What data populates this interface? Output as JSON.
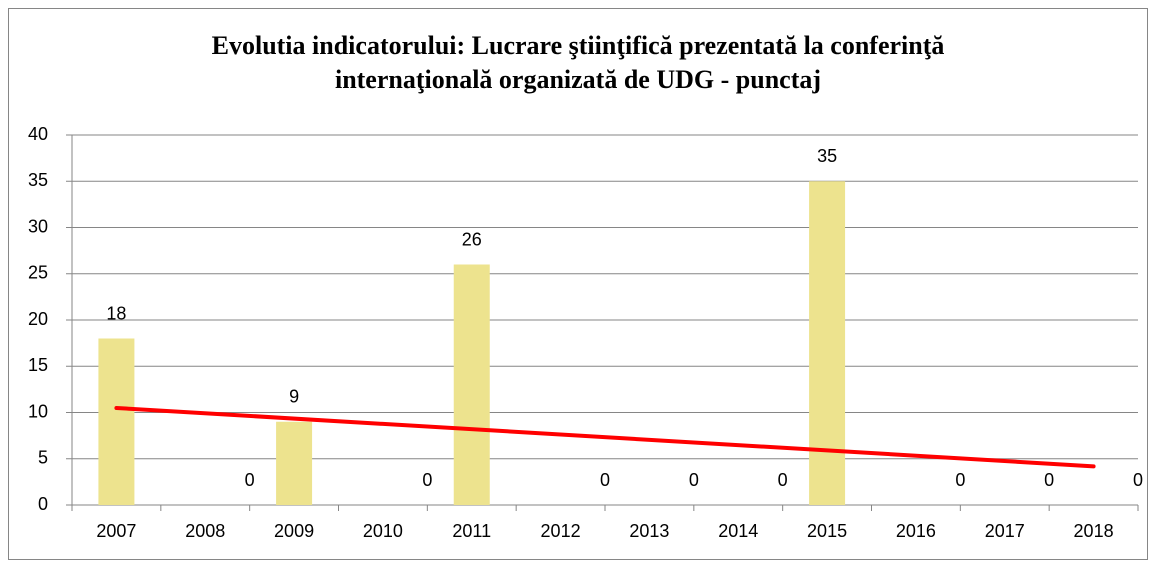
{
  "chart_data": {
    "type": "bar",
    "title": [
      "Evolutia indicatorului: Lucrare ştiinţifică prezentată la conferinţă",
      "internaţională organizată de UDG - punctaj"
    ],
    "categories": [
      "2007",
      "2008",
      "2009",
      "2010",
      "2011",
      "2012",
      "2013",
      "2014",
      "2015",
      "2016",
      "2017",
      "2018"
    ],
    "values": [
      18,
      0,
      9,
      0,
      26,
      0,
      0,
      0,
      35,
      0,
      0,
      0
    ],
    "color": "#ede38e",
    "ylim": [
      0,
      40
    ],
    "yticks": [
      0,
      5,
      10,
      15,
      20,
      25,
      30,
      35,
      40
    ],
    "grid": true,
    "trendline": {
      "color": "#ff0000",
      "start": 10.49,
      "end": 4.18
    }
  }
}
